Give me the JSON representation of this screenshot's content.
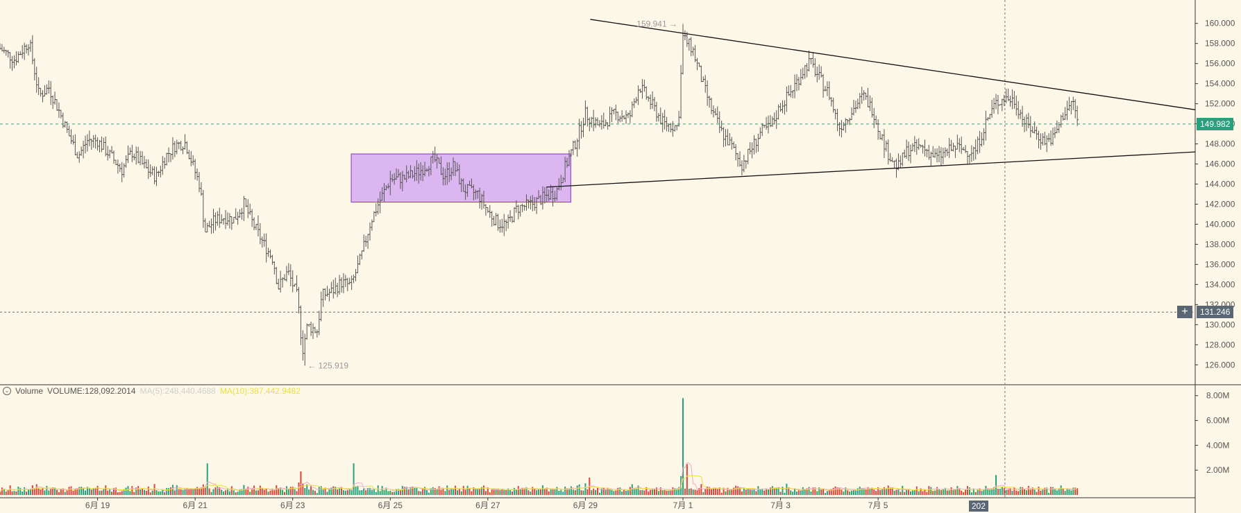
{
  "chart_data": {
    "type": "candlestick",
    "instrument_panel": {
      "price_ticks": [
        "160.000",
        "158.000",
        "156.000",
        "154.000",
        "152.000",
        "150.000",
        "148.000",
        "146.000",
        "144.000",
        "142.000",
        "140.000",
        "138.000",
        "136.000",
        "134.000",
        "132.000",
        "130.000",
        "128.000",
        "126.000"
      ],
      "ylim": [
        124.5,
        161.5
      ],
      "x_ticks": [
        "6月 19",
        "6月 21",
        "6月 23",
        "6月 25",
        "6月 27",
        "6月 29",
        "7月 1",
        "7月 3",
        "7月 5"
      ],
      "x_tick_days": [
        19,
        21,
        23,
        25,
        27,
        29,
        31,
        33,
        35
      ],
      "xlim_days": [
        17.0,
        41.5
      ],
      "current_price": "149.982",
      "current_price_value": 149.982,
      "crosshair_price": "131.246",
      "crosshair_price_value": 131.246,
      "crosshair_day": 37.6,
      "crosshair_date_label": "202",
      "max_label": "159.941",
      "max_value": 159.941,
      "max_day": 31.0,
      "min_label": "125.919",
      "min_value": 125.919,
      "min_day": 23.25,
      "close_path": [
        [
          17.0,
          157.5
        ],
        [
          17.3,
          156.4
        ],
        [
          17.6,
          158.2
        ],
        [
          17.8,
          152.8
        ],
        [
          18.0,
          153.6
        ],
        [
          18.2,
          151.4
        ],
        [
          18.4,
          149.0
        ],
        [
          18.6,
          146.8
        ],
        [
          18.8,
          148.4
        ],
        [
          19.0,
          148.3
        ],
        [
          19.3,
          146.6
        ],
        [
          19.5,
          145.4
        ],
        [
          19.7,
          147.2
        ],
        [
          20.0,
          145.5
        ],
        [
          20.2,
          144.7
        ],
        [
          20.4,
          146.8
        ],
        [
          20.6,
          147.9
        ],
        [
          20.8,
          148.1
        ],
        [
          21.0,
          145.2
        ],
        [
          21.1,
          143.8
        ],
        [
          21.2,
          139.3
        ],
        [
          21.4,
          140.4
        ],
        [
          21.6,
          140.7
        ],
        [
          21.8,
          140.5
        ],
        [
          22.0,
          142.0
        ],
        [
          22.2,
          139.9
        ],
        [
          22.4,
          138.1
        ],
        [
          22.6,
          136.5
        ],
        [
          22.7,
          133.7
        ],
        [
          22.9,
          135.3
        ],
        [
          23.1,
          132.7
        ],
        [
          23.2,
          127.4
        ],
        [
          23.3,
          129.9
        ],
        [
          23.5,
          129.4
        ],
        [
          23.6,
          132.9
        ],
        [
          23.8,
          133.3
        ],
        [
          24.0,
          134.2
        ],
        [
          24.2,
          133.9
        ],
        [
          24.4,
          136.7
        ],
        [
          24.6,
          140.3
        ],
        [
          24.8,
          142.5
        ],
        [
          25.0,
          144.5
        ],
        [
          25.3,
          144.6
        ],
        [
          25.6,
          145.3
        ],
        [
          25.9,
          146.5
        ],
        [
          26.1,
          144.8
        ],
        [
          26.3,
          145.8
        ],
        [
          26.5,
          143.5
        ],
        [
          26.8,
          143.0
        ],
        [
          27.0,
          141.3
        ],
        [
          27.2,
          140.1
        ],
        [
          27.4,
          140.0
        ],
        [
          27.6,
          141.6
        ],
        [
          27.9,
          142.0
        ],
        [
          28.2,
          142.8
        ],
        [
          28.4,
          143.2
        ],
        [
          28.6,
          145.9
        ],
        [
          28.8,
          148.2
        ],
        [
          29.0,
          151.0
        ],
        [
          29.3,
          149.7
        ],
        [
          29.6,
          151.0
        ],
        [
          29.9,
          150.6
        ],
        [
          30.1,
          153.8
        ],
        [
          30.3,
          152.4
        ],
        [
          30.6,
          150.0
        ],
        [
          30.9,
          149.7
        ],
        [
          31.0,
          158.6
        ],
        [
          31.2,
          157.4
        ],
        [
          31.4,
          154.1
        ],
        [
          31.6,
          151.2
        ],
        [
          31.8,
          149.1
        ],
        [
          32.0,
          147.7
        ],
        [
          32.2,
          145.9
        ],
        [
          32.4,
          147.5
        ],
        [
          32.6,
          149.2
        ],
        [
          32.8,
          149.7
        ],
        [
          33.0,
          151.8
        ],
        [
          33.2,
          153.1
        ],
        [
          33.5,
          155.6
        ],
        [
          33.6,
          156.2
        ],
        [
          33.8,
          154.5
        ],
        [
          34.0,
          152.9
        ],
        [
          34.2,
          149.6
        ],
        [
          34.4,
          150.9
        ],
        [
          34.7,
          152.8
        ],
        [
          34.9,
          151.3
        ],
        [
          35.0,
          149.6
        ],
        [
          35.2,
          147.1
        ],
        [
          35.4,
          145.6
        ],
        [
          35.6,
          147.4
        ],
        [
          35.9,
          147.7
        ],
        [
          36.2,
          146.6
        ],
        [
          36.4,
          147.2
        ],
        [
          36.6,
          147.7
        ],
        [
          36.8,
          147.3
        ],
        [
          37.0,
          147.4
        ],
        [
          37.2,
          150.0
        ],
        [
          37.4,
          152.0
        ],
        [
          37.6,
          152.6
        ],
        [
          37.8,
          152.3
        ],
        [
          38.0,
          150.2
        ],
        [
          38.2,
          149.2
        ],
        [
          38.4,
          148.3
        ],
        [
          38.6,
          148.6
        ],
        [
          38.8,
          151.0
        ],
        [
          39.0,
          152.2
        ],
        [
          39.1,
          149.9
        ]
      ],
      "volume_ticks": [
        "8.00M",
        "6.00M",
        "4.00M",
        "2.00M"
      ],
      "volume_ylim": [
        0,
        8.6
      ]
    },
    "volume_legend": {
      "name": "Volume",
      "volume": "VOLUME:128,092.2014",
      "ma5": "MA(5):248,440.4688",
      "ma10": "MA(10):387,442.9482"
    },
    "volume_spikes": [
      {
        "day": 21.25,
        "value": 2.55,
        "up": false
      },
      {
        "day": 24.25,
        "value": 2.55,
        "up": true
      },
      {
        "day": 23.15,
        "value": 1.9,
        "up": false
      },
      {
        "day": 31.0,
        "value": 7.8,
        "up": true
      },
      {
        "day": 31.1,
        "value": 2.5,
        "up": false
      },
      {
        "day": 29.1,
        "value": 1.4,
        "up": true
      },
      {
        "day": 37.4,
        "value": 1.6,
        "up": true
      }
    ],
    "annotations": {
      "consolidation_box": {
        "day_start": 24.2,
        "day_end": 28.7,
        "price_top": 147.0,
        "price_bottom": 142.2,
        "fill": "#d9b0f0",
        "stroke": "#8a2ec2"
      },
      "upper_trendline": {
        "day_start": 29.1,
        "price_start": 160.4,
        "day_end": 41.5,
        "price_end": 151.4
      },
      "lower_trendline": {
        "day_start": 28.2,
        "price_start": 143.7,
        "day_end": 41.5,
        "price_end": 147.2
      }
    },
    "colors": {
      "up": "#26a17b",
      "down": "#d9453b",
      "ma5": "#f0a8c8",
      "ma10": "#e8e040",
      "current_price_tag": "#26a17b",
      "crosshair_tag": "#5b6675",
      "background": "#fdf7e8",
      "candle": "#555555"
    }
  }
}
